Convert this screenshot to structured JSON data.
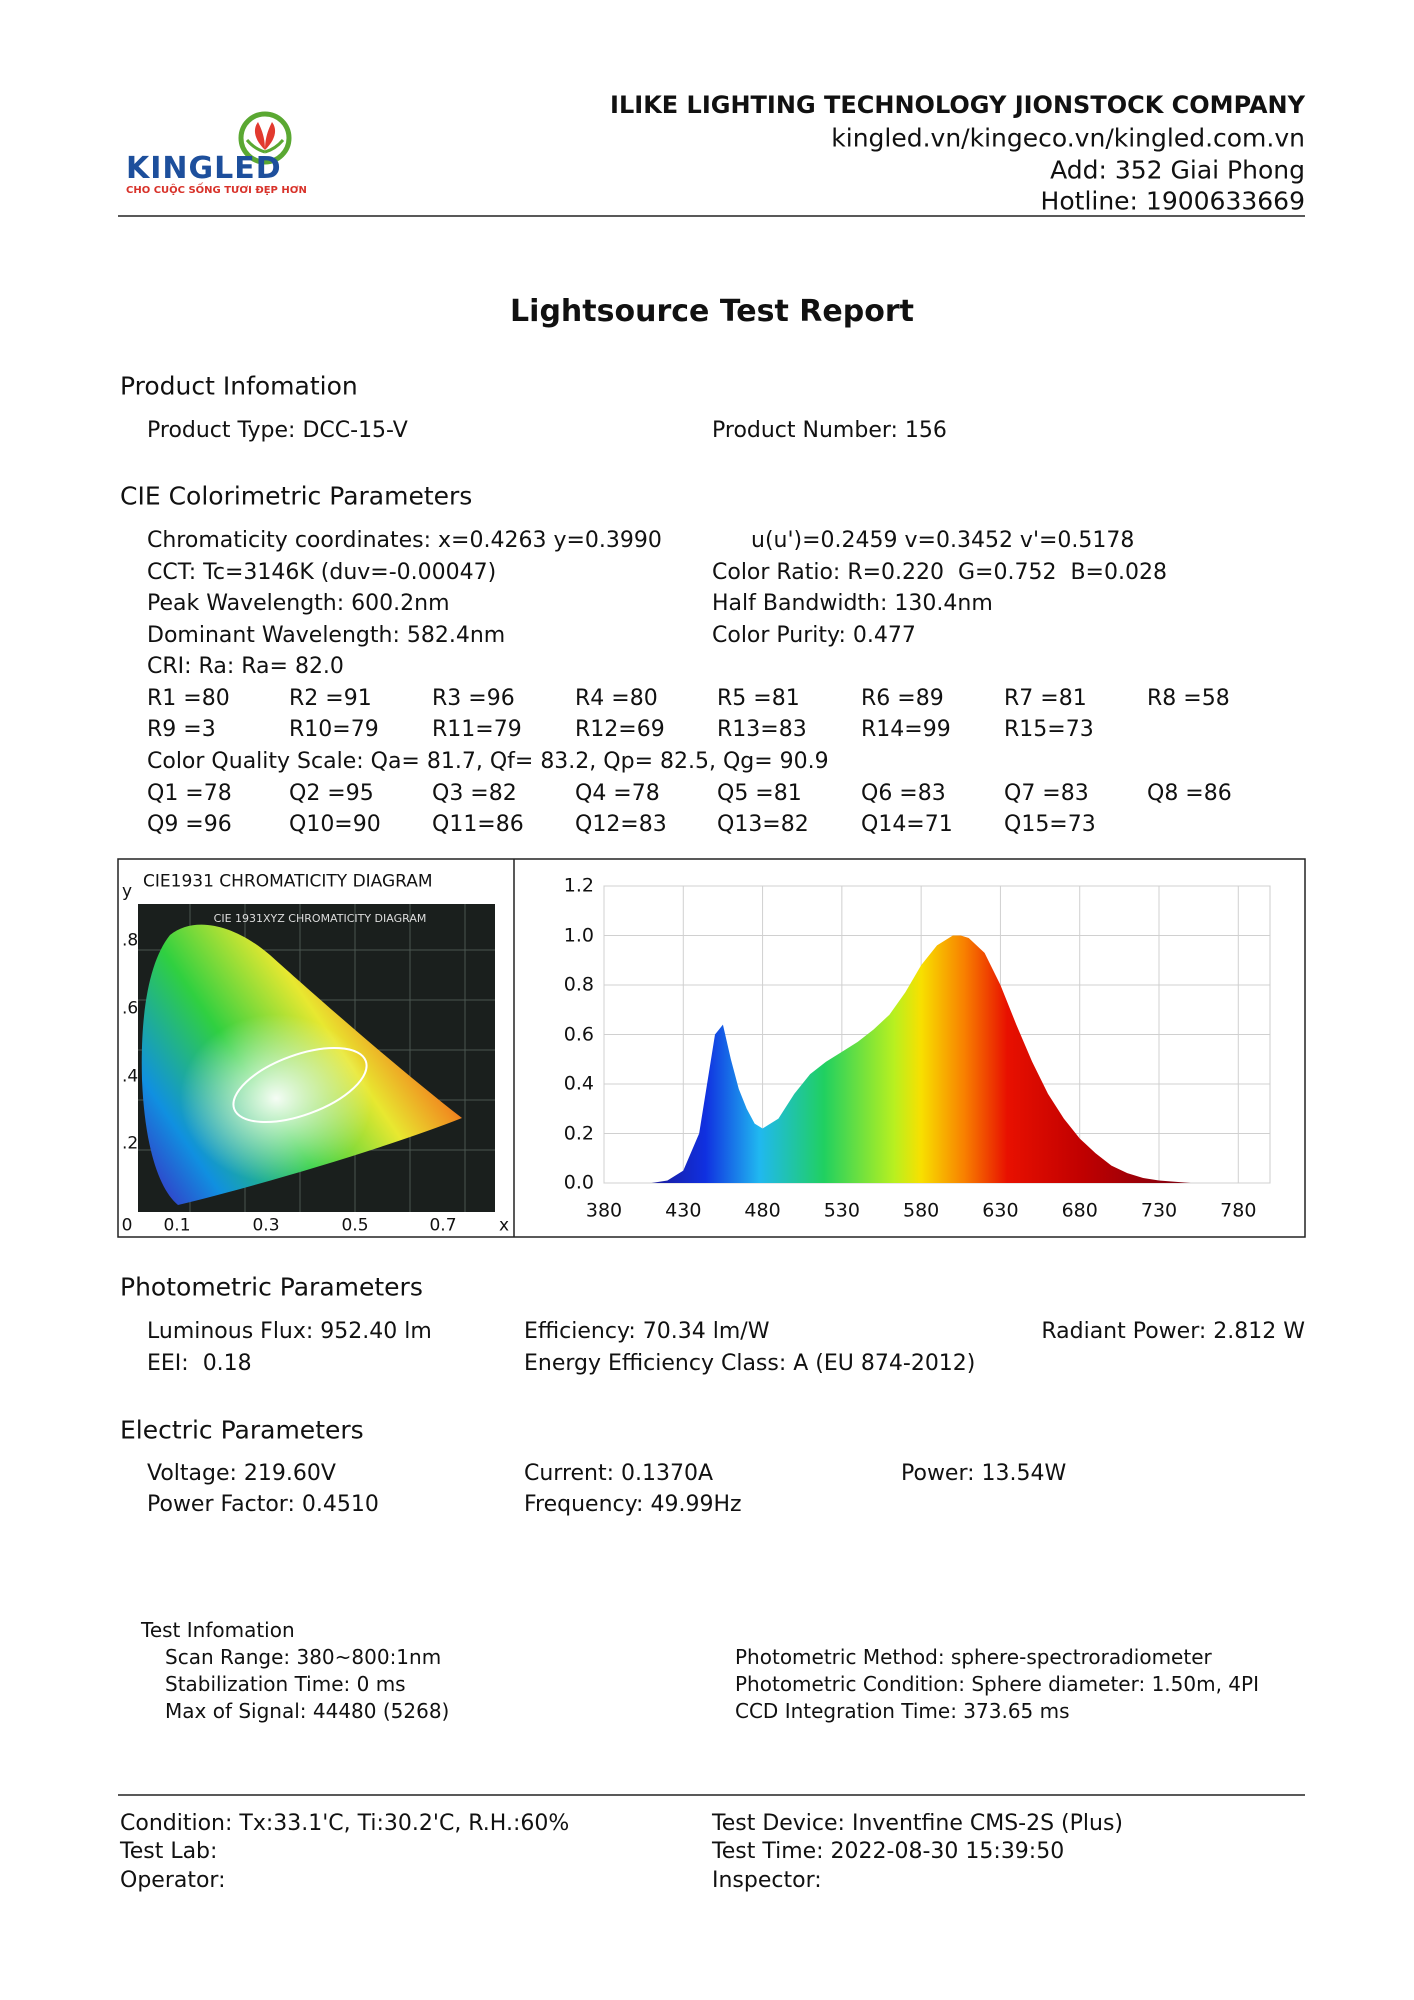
{
  "header": {
    "logo_text": "KINGLED",
    "logo_slogan": "CHO CUỘC SỐNG TƯƠI ĐẸP HƠN",
    "company": "ILIKE LIGHTING TECHNOLOGY JIONSTOCK COMPANY",
    "website": "kingled.vn/kingeco.vn/kingled.com.vn",
    "address": "Add: 352 Giai Phong",
    "hotline": "Hotline: 1900633669"
  },
  "title": "Lightsource Test Report",
  "product": {
    "heading": "Product Infomation",
    "type": "Product Type: DCC-15-V",
    "number": "Product Number: 156"
  },
  "cie": {
    "heading": "CIE Colorimetric Parameters",
    "rows": [
      {
        "left": "Chromaticity coordinates: x=0.4263 y=0.3990",
        "right": "u(u')=0.2459 v=0.3452 v'=0.5178"
      },
      {
        "left": "CCT: Tc=3146K (duv=-0.00047)",
        "right": "Color Ratio: R=0.220  G=0.752  B=0.028"
      },
      {
        "left": "Peak Wavelength: 600.2nm",
        "right": "Half Bandwidth: 130.4nm"
      },
      {
        "left": "Dominant Wavelength: 582.4nm",
        "right": "Color Purity: 0.477"
      },
      {
        "left": "CRI: Ra: Ra= 82.0"
      }
    ],
    "r_values": [
      [
        "R1 =80",
        "R2 =91",
        "R3 =96",
        "R4 =80",
        "R5 =81",
        "R6 =89",
        "R7 =81",
        "R8 =58"
      ],
      [
        "R9 =3",
        "R10=79",
        "R11=79",
        "R12=69",
        "R13=83",
        "R14=99",
        "R15=73"
      ]
    ],
    "cqs": "Color Quality Scale: Qa= 81.7, Qf= 83.2, Qp= 82.5, Qg= 90.9",
    "q_values": [
      [
        "Q1 =78",
        "Q2 =95",
        "Q3 =82",
        "Q4 =78",
        "Q5 =81",
        "Q6 =83",
        "Q7 =83",
        "Q8 =86"
      ],
      [
        "Q9 =96",
        "Q10=90",
        "Q11=86",
        "Q12=83",
        "Q13=82",
        "Q14=71",
        "Q15=73"
      ]
    ]
  },
  "cie_diagram": {
    "title": "CIE1931 CHROMATICITY DIAGRAM",
    "inner_title": "CIE 1931XYZ CHROMATICITY DIAGRAM",
    "y_axis": "y",
    "x_axis": "x",
    "y_labels": [
      ".8",
      ".6",
      ".4",
      ".2"
    ],
    "x_labels": [
      "0",
      "0.1",
      "0.3",
      "0.5",
      "0.7"
    ]
  },
  "spectrum": {
    "type": "area",
    "x": [
      410,
      420,
      430,
      440,
      445,
      450,
      455,
      460,
      465,
      470,
      475,
      480,
      490,
      500,
      510,
      520,
      530,
      540,
      550,
      560,
      570,
      580,
      590,
      600,
      605,
      610,
      620,
      630,
      640,
      650,
      660,
      670,
      680,
      690,
      700,
      710,
      720,
      730,
      740,
      750
    ],
    "values": [
      0,
      0.01,
      0.05,
      0.2,
      0.4,
      0.6,
      0.64,
      0.5,
      0.38,
      0.3,
      0.24,
      0.22,
      0.26,
      0.36,
      0.44,
      0.49,
      0.53,
      0.57,
      0.62,
      0.68,
      0.77,
      0.88,
      0.96,
      1.0,
      1.0,
      0.99,
      0.93,
      0.8,
      0.64,
      0.49,
      0.36,
      0.26,
      0.18,
      0.12,
      0.07,
      0.04,
      0.02,
      0.01,
      0.005,
      0
    ],
    "xlim": [
      380,
      800
    ],
    "ylim": [
      0,
      1.2
    ],
    "xticks": [
      380,
      430,
      480,
      530,
      580,
      630,
      680,
      730,
      780
    ],
    "yticks": [
      {
        "value": 0,
        "label": "0.0"
      },
      {
        "value": 0.2,
        "label": "0.2"
      },
      {
        "value": 0.4,
        "label": "0.4"
      },
      {
        "value": 0.6,
        "label": "0.6"
      },
      {
        "value": 0.8,
        "label": "0.8"
      },
      {
        "value": 1.0,
        "label": "1.0"
      },
      {
        "value": 1.2,
        "label": "1.2"
      }
    ],
    "grid": true
  },
  "photometric": {
    "heading": "Photometric Parameters",
    "rows": [
      [
        "Luminous Flux: 952.40 lm",
        "Efficiency: 70.34 lm/W",
        "Radiant Power: 2.812 W"
      ],
      [
        "EEI:  0.18",
        "Energy Efficiency Class: A (EU 874-2012)"
      ]
    ]
  },
  "electric": {
    "heading": "Electric Parameters",
    "rows": [
      [
        "Voltage: 219.60V",
        "Current: 0.1370A",
        "Power: 13.54W"
      ],
      [
        "Power Factor: 0.4510",
        "Frequency: 49.99Hz"
      ]
    ]
  },
  "test_info": {
    "heading": "Test Infomation",
    "left": [
      "Scan Range: 380~800:1nm",
      "Stabilization Time: 0 ms",
      "Max of Signal: 44480 (5268)"
    ],
    "right": [
      "Photometric Method: sphere-spectroradiometer",
      "Photometric Condition: Sphere diameter: 1.50m, 4PI",
      "CCD Integration Time: 373.65 ms"
    ]
  },
  "footer": {
    "left": [
      "Condition: Tx:33.1'C, Ti:30.2'C, R.H.:60%",
      "Test Lab:",
      "Operator:"
    ],
    "right": [
      "Test Device: Inventfine CMS-2S (Plus)",
      "Test Time: 2022-08-30 15:39:50",
      "Inspector:"
    ]
  }
}
